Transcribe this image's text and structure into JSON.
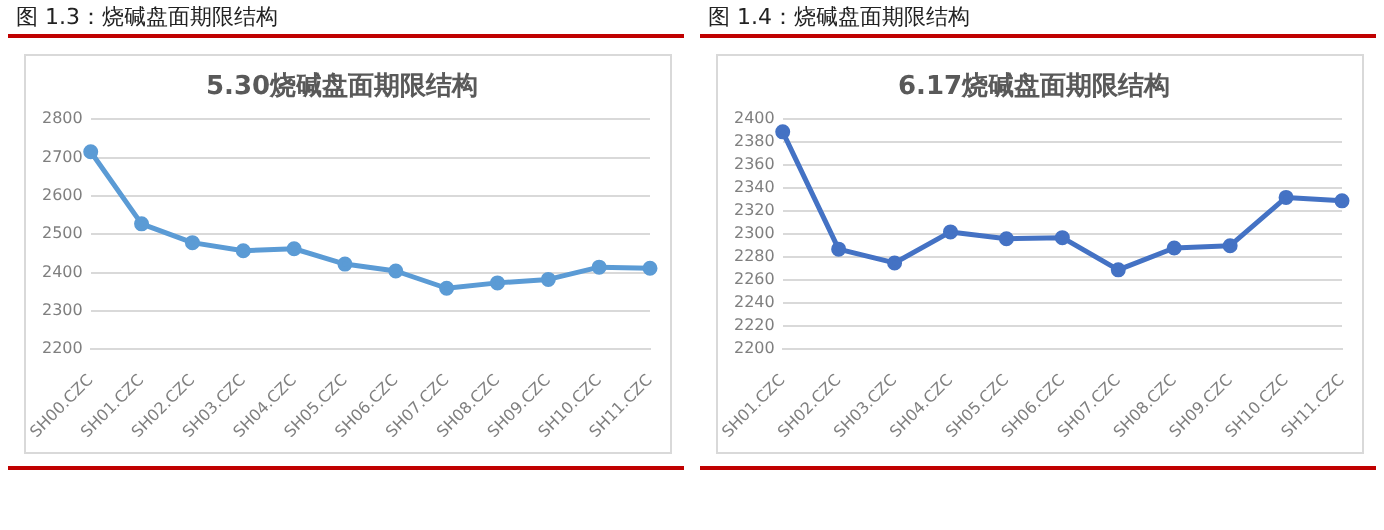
{
  "chart_data": [
    {
      "type": "line",
      "title": "5.30烧碱盘面期限结构",
      "annotations": [
        "图 1.3：烧碱盘面期限结构"
      ],
      "categories": [
        "SH00.CZC",
        "SH01.CZC",
        "SH02.CZC",
        "SH03.CZC",
        "SH04.CZC",
        "SH05.CZC",
        "SH06.CZC",
        "SH07.CZC",
        "SH08.CZC",
        "SH09.CZC",
        "SH10.CZC",
        "SH11.CZC"
      ],
      "series": [
        {
          "color": "#5b9bd5",
          "values": [
            2715,
            2527,
            2478,
            2457,
            2462,
            2422,
            2404,
            2359,
            2373,
            2382,
            2414,
            2411
          ]
        }
      ],
      "ylim": [
        2200,
        2800
      ],
      "yticks": [
        2200,
        2300,
        2400,
        2500,
        2600,
        2700,
        2800
      ],
      "grid": "y",
      "marker": "circle"
    },
    {
      "type": "line",
      "title": "6.17烧碱盘面期限结构",
      "annotations": [
        "图 1.4：烧碱盘面期限结构"
      ],
      "categories": [
        "SH01.CZC",
        "SH02.CZC",
        "SH03.CZC",
        "SH04.CZC",
        "SH05.CZC",
        "SH06.CZC",
        "SH07.CZC",
        "SH08.CZC",
        "SH09.CZC",
        "SH10.CZC",
        "SH11.CZC"
      ],
      "series": [
        {
          "color": "#4472c4",
          "values": [
            2389,
            2287,
            2275,
            2302,
            2296,
            2297,
            2269,
            2288,
            2290,
            2332,
            2329
          ]
        }
      ],
      "ylim": [
        2200,
        2400
      ],
      "yticks": [
        2200,
        2220,
        2240,
        2260,
        2280,
        2300,
        2320,
        2340,
        2360,
        2380,
        2400
      ],
      "grid": "y",
      "marker": "circle"
    }
  ]
}
